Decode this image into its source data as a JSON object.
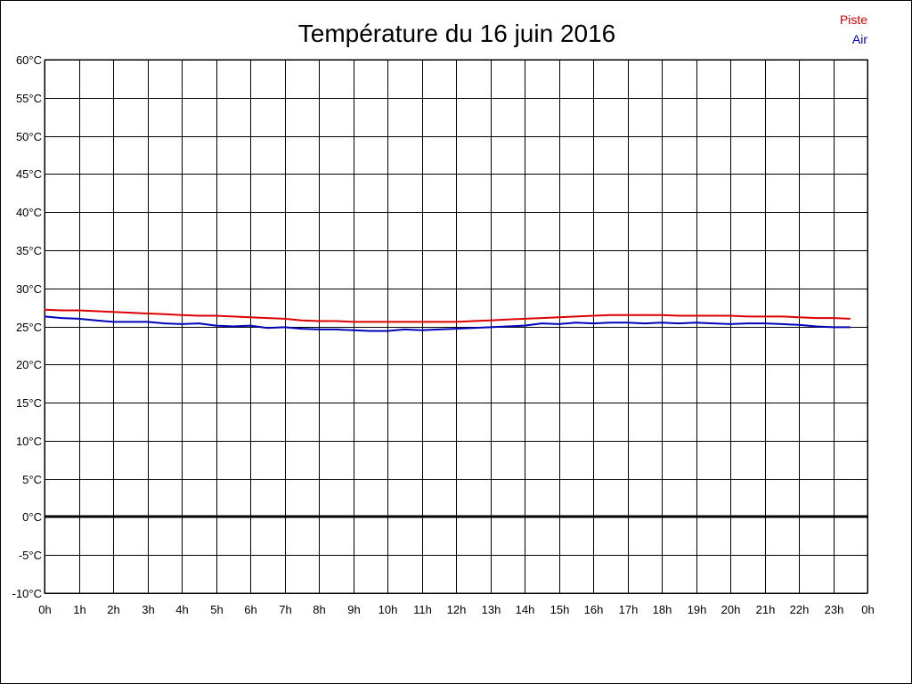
{
  "chart_data": {
    "type": "line",
    "title": "Température du 16 juin 2016",
    "xlabel": "",
    "ylabel": "",
    "x_unit": "hour",
    "xlim": [
      0,
      24
    ],
    "ylim": [
      -10,
      60
    ],
    "y_ticks": [
      {
        "value": 60,
        "label": "60°C"
      },
      {
        "value": 55,
        "label": "55°C"
      },
      {
        "value": 50,
        "label": "50°C"
      },
      {
        "value": 45,
        "label": "45°C"
      },
      {
        "value": 40,
        "label": "40°C"
      },
      {
        "value": 35,
        "label": "35°C"
      },
      {
        "value": 30,
        "label": "30°C"
      },
      {
        "value": 25,
        "label": "25°C"
      },
      {
        "value": 20,
        "label": "20°C"
      },
      {
        "value": 15,
        "label": "15°C"
      },
      {
        "value": 10,
        "label": "10°C"
      },
      {
        "value": 5,
        "label": "5°C"
      },
      {
        "value": 0,
        "label": "0°C"
      },
      {
        "value": -5,
        "label": "-5°C"
      },
      {
        "value": -10,
        "label": "-10°C"
      }
    ],
    "x_ticks": [
      {
        "value": 0,
        "label": "0h"
      },
      {
        "value": 1,
        "label": "1h"
      },
      {
        "value": 2,
        "label": "2h"
      },
      {
        "value": 3,
        "label": "3h"
      },
      {
        "value": 4,
        "label": "4h"
      },
      {
        "value": 5,
        "label": "5h"
      },
      {
        "value": 6,
        "label": "6h"
      },
      {
        "value": 7,
        "label": "7h"
      },
      {
        "value": 8,
        "label": "8h"
      },
      {
        "value": 9,
        "label": "9h"
      },
      {
        "value": 10,
        "label": "10h"
      },
      {
        "value": 11,
        "label": "11h"
      },
      {
        "value": 12,
        "label": "12h"
      },
      {
        "value": 13,
        "label": "13h"
      },
      {
        "value": 14,
        "label": "14h"
      },
      {
        "value": 15,
        "label": "15h"
      },
      {
        "value": 16,
        "label": "16h"
      },
      {
        "value": 17,
        "label": "17h"
      },
      {
        "value": 18,
        "label": "18h"
      },
      {
        "value": 19,
        "label": "19h"
      },
      {
        "value": 20,
        "label": "20h"
      },
      {
        "value": 21,
        "label": "21h"
      },
      {
        "value": 22,
        "label": "22h"
      },
      {
        "value": 23,
        "label": "23h"
      },
      {
        "value": 24,
        "label": "0h"
      }
    ],
    "grid": true,
    "zero_line": true,
    "legend_position": "top-right",
    "series": [
      {
        "name": "Piste",
        "color": "#dd0000",
        "x": [
          0,
          0.5,
          1,
          1.5,
          2,
          2.5,
          3,
          3.5,
          4,
          4.5,
          5,
          5.5,
          6,
          6.5,
          7,
          7.5,
          8,
          8.5,
          9,
          9.5,
          10,
          10.5,
          11,
          11.5,
          12,
          12.5,
          13,
          13.5,
          14,
          14.5,
          15,
          15.5,
          16,
          16.5,
          17,
          17.5,
          18,
          18.5,
          19,
          19.5,
          20,
          20.5,
          21,
          21.5,
          22,
          22.5,
          23,
          23.5
        ],
        "values": [
          27.2,
          27.1,
          27.1,
          27.0,
          26.9,
          26.8,
          26.7,
          26.6,
          26.5,
          26.4,
          26.4,
          26.3,
          26.2,
          26.1,
          26.0,
          25.8,
          25.7,
          25.7,
          25.6,
          25.6,
          25.6,
          25.6,
          25.6,
          25.6,
          25.6,
          25.7,
          25.8,
          25.9,
          26.0,
          26.1,
          26.2,
          26.3,
          26.4,
          26.5,
          26.5,
          26.5,
          26.5,
          26.4,
          26.4,
          26.4,
          26.4,
          26.3,
          26.3,
          26.3,
          26.2,
          26.1,
          26.1,
          26.0
        ]
      },
      {
        "name": "Air",
        "color": "#0000bb",
        "x": [
          0,
          0.5,
          1,
          1.5,
          2,
          2.5,
          3,
          3.5,
          4,
          4.5,
          5,
          5.5,
          6,
          6.5,
          7,
          7.5,
          8,
          8.5,
          9,
          9.5,
          10,
          10.5,
          11,
          11.5,
          12,
          12.5,
          13,
          13.5,
          14,
          14.5,
          15,
          15.5,
          16,
          16.5,
          17,
          17.5,
          18,
          18.5,
          19,
          19.5,
          20,
          20.5,
          21,
          21.5,
          22,
          22.5,
          23,
          23.5
        ],
        "values": [
          26.3,
          26.1,
          26.0,
          25.8,
          25.6,
          25.6,
          25.6,
          25.4,
          25.3,
          25.4,
          25.1,
          25.0,
          25.1,
          24.8,
          24.9,
          24.7,
          24.6,
          24.6,
          24.5,
          24.4,
          24.4,
          24.6,
          24.5,
          24.6,
          24.7,
          24.8,
          24.9,
          25.0,
          25.1,
          25.4,
          25.3,
          25.5,
          25.4,
          25.5,
          25.5,
          25.4,
          25.5,
          25.4,
          25.5,
          25.4,
          25.3,
          25.4,
          25.4,
          25.3,
          25.2,
          25.0,
          24.9,
          24.9
        ]
      }
    ]
  }
}
